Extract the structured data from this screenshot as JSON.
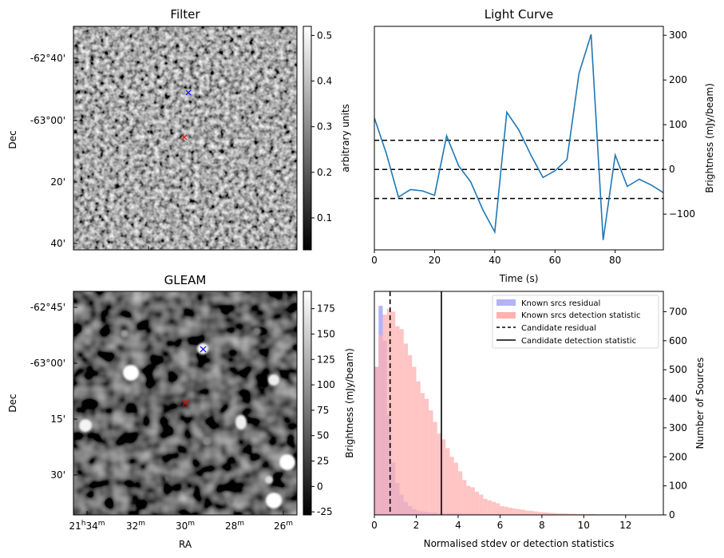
{
  "colors": {
    "line": "#1f77b4",
    "cross_blue": "#0000ff",
    "cross_red": "#ff0000",
    "hist_blue": "#b3b3f5",
    "hist_red": "#ffb0b0",
    "hist_overlap": "#b07fc0"
  },
  "filter_panel": {
    "title": "Filter",
    "ylabel": "Dec",
    "yticks": [
      "-62°40'",
      "-63°00'",
      "20'",
      "40'"
    ],
    "colorbar_label": "arbitrary units",
    "colorbar_ticks": [
      "0.5",
      "0.4",
      "0.3",
      "0.2",
      "0.1"
    ],
    "colorbar_range": [
      0.03,
      0.52
    ]
  },
  "gleam_panel": {
    "title": "GLEAM",
    "ylabel": "Dec",
    "xlabel": "RA",
    "yticks": [
      "-62°45'",
      "-63°00'",
      "15'",
      "30'"
    ],
    "xticks": [
      {
        "h": "21",
        "m": "34"
      },
      {
        "h": "",
        "m": "32"
      },
      {
        "h": "",
        "m": "30"
      },
      {
        "h": "",
        "m": "28"
      },
      {
        "h": "",
        "m": "26"
      }
    ],
    "colorbar_label": "Brightness (mJy/beam)",
    "colorbar_ticks": [
      "175",
      "150",
      "125",
      "100",
      "75",
      "50",
      "25",
      "0",
      "-25"
    ],
    "colorbar_range": [
      -28,
      192
    ]
  },
  "chart_data": [
    {
      "type": "line",
      "title": "Light Curve",
      "xlabel": "Time (s)",
      "ylabel": "Brightness (mJy/beam)",
      "xlim": [
        0,
        96
      ],
      "ylim": [
        -180,
        320
      ],
      "xticks": [
        0,
        20,
        40,
        60,
        80
      ],
      "yticks": [
        -100,
        0,
        100,
        200,
        300
      ],
      "x": [
        0,
        4,
        8,
        12,
        16,
        20,
        24,
        28,
        32,
        36,
        40,
        44,
        48,
        52,
        56,
        60,
        64,
        68,
        72,
        76,
        80,
        84,
        88,
        92,
        96
      ],
      "y": [
        115,
        35,
        -62,
        -45,
        -48,
        -58,
        75,
        8,
        -28,
        -90,
        -140,
        128,
        88,
        32,
        -18,
        -3,
        22,
        215,
        302,
        -158,
        32,
        -38,
        -22,
        -35,
        -52
      ],
      "hlines": [
        65,
        0,
        -65
      ]
    },
    {
      "type": "bar",
      "xlabel": "Normalised stdev or detection statistics",
      "ylabel": "Number of Sources",
      "xlim": [
        0,
        13.8
      ],
      "ylim": [
        0,
        770
      ],
      "xticks": [
        0,
        2,
        4,
        6,
        8,
        10,
        12
      ],
      "yticks": [
        0,
        100,
        200,
        300,
        400,
        500,
        600,
        700
      ],
      "bin_width": 0.2,
      "series": [
        {
          "name": "Known srcs residual",
          "values": [
            510,
            720,
            600,
            345,
            180,
            110,
            70,
            45,
            30,
            20,
            15,
            12,
            10,
            8,
            8,
            6,
            5,
            5,
            5,
            5,
            4,
            4,
            4,
            4,
            4,
            3,
            3,
            3,
            3,
            3,
            2,
            2,
            2,
            2,
            2,
            2,
            2,
            1,
            1,
            1,
            1,
            1,
            1,
            1,
            1,
            1,
            1,
            1,
            1,
            1,
            0,
            0,
            0,
            0,
            0,
            0,
            0,
            0,
            0,
            0,
            0,
            0,
            0,
            0,
            0,
            0,
            0,
            0,
            0
          ]
        },
        {
          "name": "Known srcs detection statistic",
          "values": [
            510,
            620,
            690,
            710,
            700,
            650,
            640,
            590,
            550,
            510,
            460,
            420,
            400,
            360,
            320,
            280,
            260,
            230,
            200,
            180,
            150,
            120,
            100,
            95,
            80,
            70,
            55,
            50,
            45,
            40,
            30,
            28,
            25,
            22,
            20,
            18,
            15,
            14,
            12,
            10,
            9,
            8,
            7,
            6,
            5,
            5,
            4,
            4,
            3,
            3,
            3,
            3,
            3,
            2,
            2,
            2,
            2,
            2,
            2,
            1,
            1,
            1,
            1,
            1,
            1,
            1,
            1,
            1,
            1
          ]
        }
      ],
      "vlines": [
        {
          "name": "Candidate residual",
          "x": 0.75,
          "style": "dashed"
        },
        {
          "name": "Candidate detection statistic",
          "x": 3.2,
          "style": "solid"
        }
      ],
      "legend": "top-right"
    }
  ]
}
